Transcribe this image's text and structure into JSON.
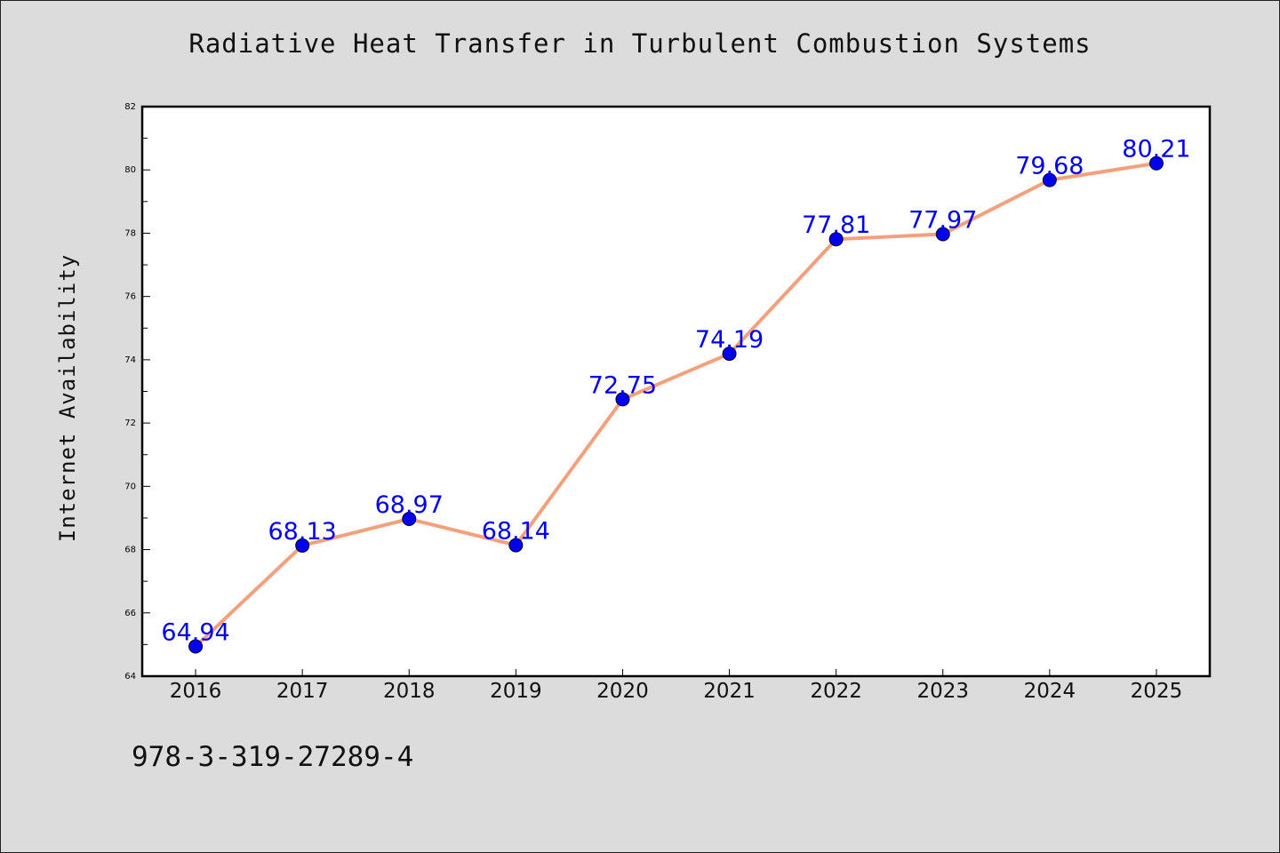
{
  "chart_data": {
    "type": "line",
    "title": "Radiative Heat Transfer in Turbulent Combustion Systems",
    "xlabel": "",
    "ylabel": "Internet Availability",
    "categories": [
      "2016",
      "2017",
      "2018",
      "2019",
      "2020",
      "2021",
      "2022",
      "2023",
      "2024",
      "2025"
    ],
    "values": [
      64.94,
      68.13,
      68.97,
      68.14,
      72.75,
      74.19,
      77.81,
      77.97,
      79.68,
      80.21
    ],
    "data_labels": [
      "64.94",
      "68.13",
      "68.97",
      "68.14",
      "72.75",
      "74.19",
      "77.81",
      "77.97",
      "79.68",
      "80.21"
    ],
    "ylim": [
      64,
      82
    ],
    "y_ticks": [
      "64",
      "66",
      "68",
      "70",
      "72",
      "74",
      "76",
      "78",
      "80",
      "82"
    ],
    "grid": false,
    "line_color": "#f4a07c",
    "marker_color": "#0000ee",
    "label_color": "#0000ee"
  },
  "footer": {
    "isbn": "978-3-319-27289-4"
  }
}
